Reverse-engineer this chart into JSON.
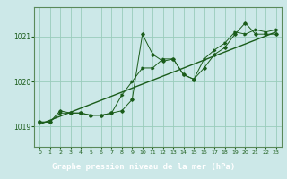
{
  "title": "Graphe pression niveau de la mer (hPa)",
  "background_color": "#cce8e8",
  "plot_bg_color": "#cce8e8",
  "grid_color": "#99ccbb",
  "line_color": "#1a5c1a",
  "label_bg_color": "#2d6e2d",
  "label_text_color": "#ffffff",
  "spine_color": "#5a8a5a",
  "xlim": [
    -0.5,
    23.5
  ],
  "ylim": [
    1018.55,
    1021.65
  ],
  "yticks": [
    1019,
    1020,
    1021
  ],
  "xticks": [
    0,
    1,
    2,
    3,
    4,
    5,
    6,
    7,
    8,
    9,
    10,
    11,
    12,
    13,
    14,
    15,
    16,
    17,
    18,
    19,
    20,
    21,
    22,
    23
  ],
  "series1_x": [
    0,
    1,
    2,
    3,
    4,
    5,
    6,
    7,
    8,
    9,
    10,
    11,
    12,
    13,
    14,
    15,
    16,
    17,
    18,
    19,
    20,
    21,
    22,
    23
  ],
  "series1_y": [
    1019.1,
    1019.1,
    1019.35,
    1019.3,
    1019.3,
    1019.25,
    1019.25,
    1019.3,
    1019.35,
    1019.6,
    1021.05,
    1020.6,
    1020.45,
    1020.5,
    1020.15,
    1020.05,
    1020.3,
    1020.6,
    1020.75,
    1021.05,
    1021.3,
    1021.05,
    1021.05,
    1021.05
  ],
  "series2_x": [
    0,
    1,
    2,
    3,
    4,
    5,
    6,
    7,
    8,
    9,
    10,
    11,
    12,
    13,
    14,
    15,
    16,
    17,
    18,
    19,
    20,
    21,
    22,
    23
  ],
  "series2_y": [
    1019.1,
    1019.1,
    1019.3,
    1019.3,
    1019.3,
    1019.25,
    1019.25,
    1019.3,
    1019.7,
    1020.0,
    1020.3,
    1020.3,
    1020.5,
    1020.5,
    1020.15,
    1020.05,
    1020.5,
    1020.7,
    1020.85,
    1021.1,
    1021.05,
    1021.15,
    1021.1,
    1021.15
  ],
  "series3_x": [
    0,
    23
  ],
  "series3_y": [
    1019.05,
    1021.1
  ]
}
